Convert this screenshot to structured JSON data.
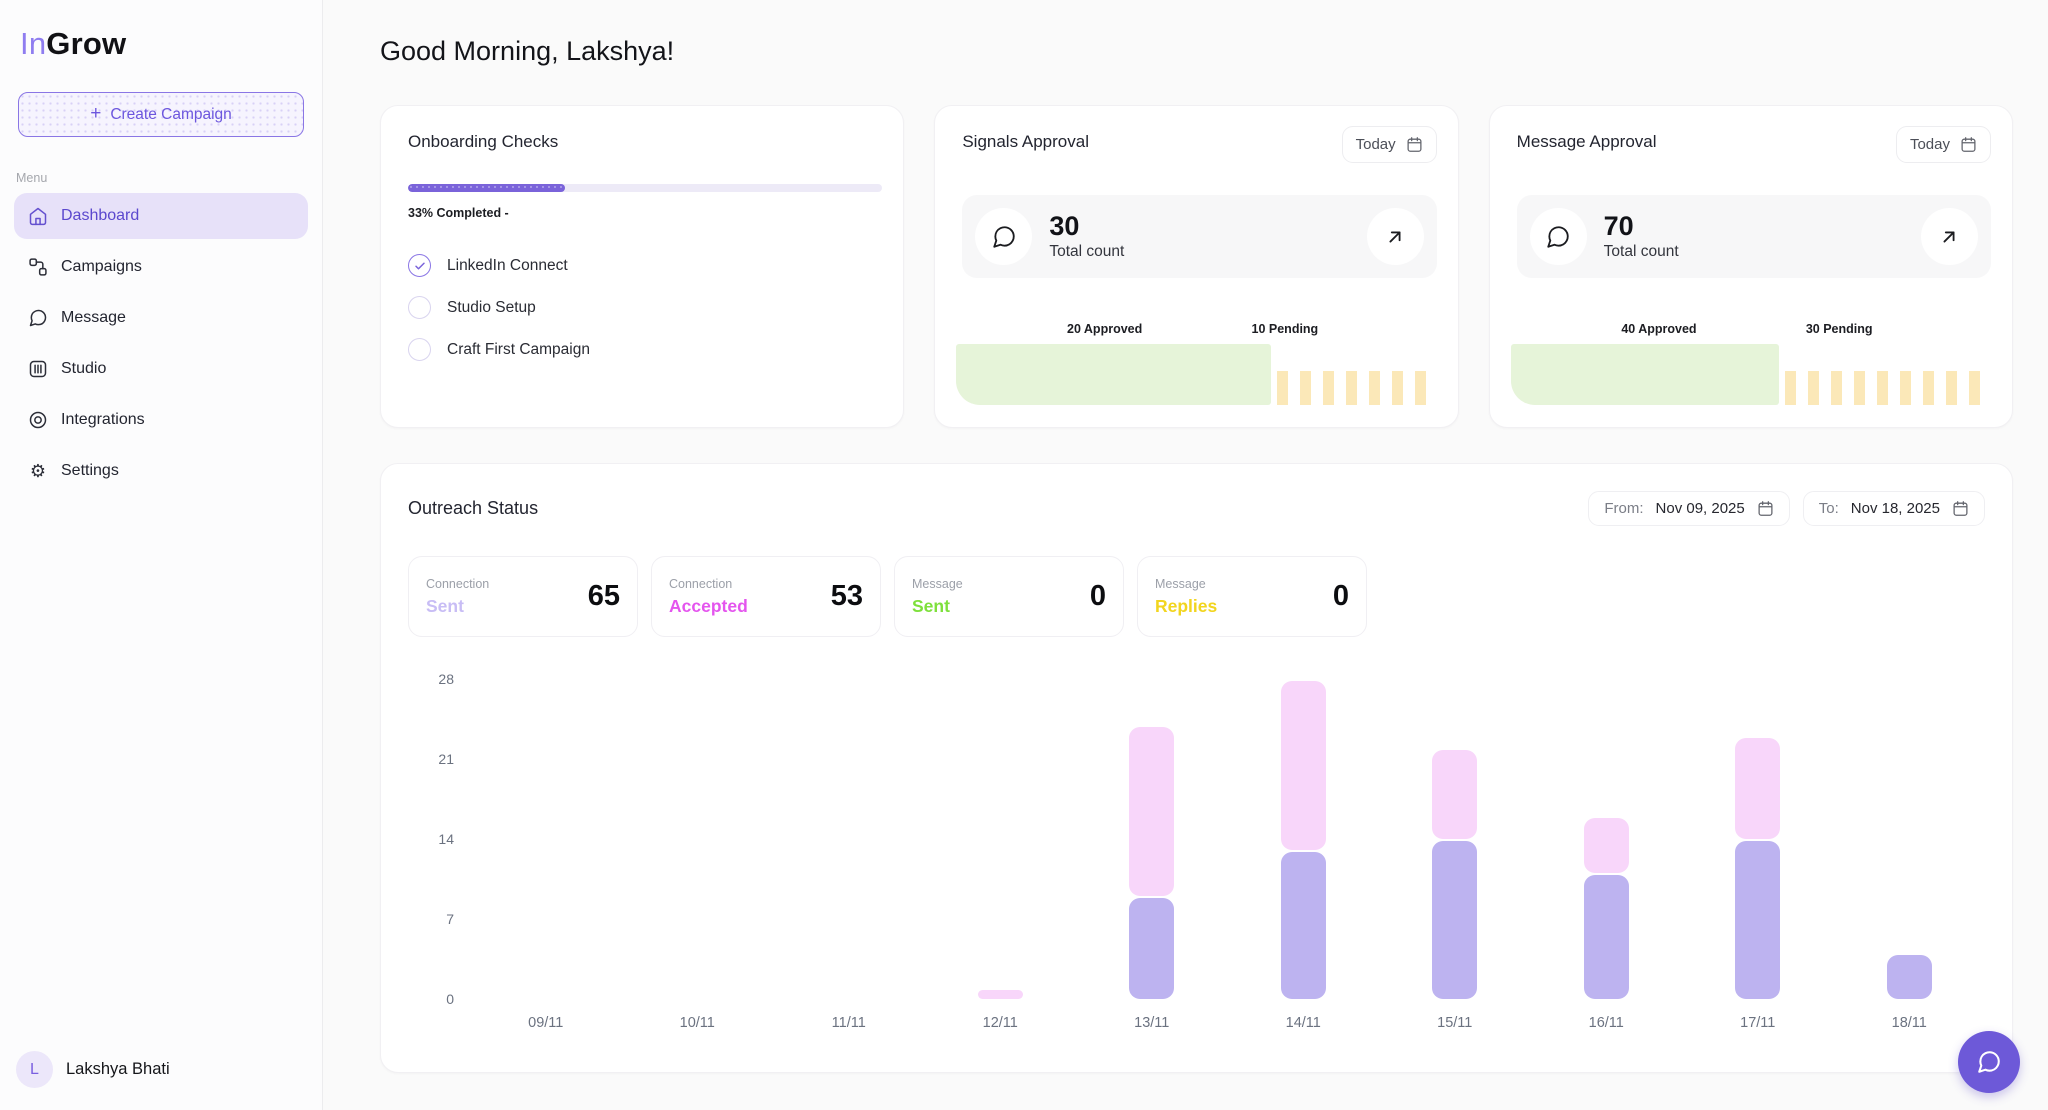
{
  "sidebar": {
    "logo": {
      "part1": "In",
      "part2": "Grow"
    },
    "create_campaign_label": "Create Campaign",
    "menu_label": "Menu",
    "items": [
      {
        "label": "Dashboard",
        "icon": "home-icon",
        "active": true
      },
      {
        "label": "Campaigns",
        "icon": "workflow-icon",
        "active": false
      },
      {
        "label": "Message",
        "icon": "chat-bubble-icon",
        "active": false
      },
      {
        "label": "Studio",
        "icon": "studio-panel-icon",
        "active": false
      },
      {
        "label": "Integrations",
        "icon": "target-icon",
        "active": false
      },
      {
        "label": "Settings",
        "icon": "gear-icon",
        "active": false
      }
    ],
    "user": {
      "initial": "L",
      "name": "Lakshya Bhati"
    }
  },
  "header": {
    "greeting": "Good Morning, Lakshya!"
  },
  "onboarding": {
    "title": "Onboarding Checks",
    "progress_percent": 33,
    "progress_label": "33% Completed -",
    "checks": [
      {
        "label": "LinkedIn Connect",
        "done": true
      },
      {
        "label": "Studio Setup",
        "done": false
      },
      {
        "label": "Craft First Campaign",
        "done": false
      }
    ]
  },
  "approvals": [
    {
      "title": "Signals Approval",
      "period_label": "Today",
      "total": 30,
      "total_label": "Total count",
      "approved": 20,
      "pending": 10,
      "approved_label": "20 Approved",
      "pending_label": "10 Pending"
    },
    {
      "title": "Message Approval",
      "period_label": "Today",
      "total": 70,
      "total_label": "Total count",
      "approved": 40,
      "pending": 30,
      "approved_label": "40 Approved",
      "pending_label": "30 Pending"
    }
  ],
  "approval_colors": {
    "approved": "#e6f4d9",
    "pending": "#fbe8b8"
  },
  "outreach": {
    "title": "Outreach Status",
    "from_label": "From:",
    "from_date": "Nov 09, 2025",
    "to_label": "To:",
    "to_date": "Nov 18, 2025",
    "stats": [
      {
        "category": "Connection",
        "metric": "Sent",
        "value": "65",
        "color": "#c8bdf5"
      },
      {
        "category": "Connection",
        "metric": "Accepted",
        "value": "53",
        "color": "#e455ee"
      },
      {
        "category": "Message",
        "metric": "Sent",
        "value": "0",
        "color": "#7ee03c"
      },
      {
        "category": "Message",
        "metric": "Replies",
        "value": "0",
        "color": "#f2d51f"
      }
    ]
  },
  "chart_data": {
    "type": "bar",
    "stacked": true,
    "title": "Outreach Status",
    "categories": [
      "09/11",
      "10/11",
      "11/11",
      "12/11",
      "13/11",
      "14/11",
      "15/11",
      "16/11",
      "17/11",
      "18/11"
    ],
    "series": [
      {
        "name": "Connection Sent",
        "color": "#bdb3f0",
        "values": [
          0,
          0,
          0,
          0,
          9,
          13,
          14,
          11,
          14,
          4
        ]
      },
      {
        "name": "Connection Accepted",
        "color": "#f8d6fa",
        "values": [
          0,
          0,
          0,
          1,
          15,
          15,
          8,
          5,
          9,
          0
        ]
      }
    ],
    "xlabel": "",
    "ylabel": "",
    "ylim": [
      0,
      28
    ],
    "yticks": [
      0,
      7,
      14,
      21,
      28
    ],
    "grid": false,
    "legend_position": "none"
  },
  "chat_fab": {
    "icon": "chat-bubble-icon"
  },
  "theme": {
    "accent_purple": "#6d59d8",
    "active_item_bg": "#e7e1f9",
    "progress_fill": "#7a63da",
    "bar_sent": "#bdb3f0",
    "bar_accepted": "#f8d6fa"
  }
}
